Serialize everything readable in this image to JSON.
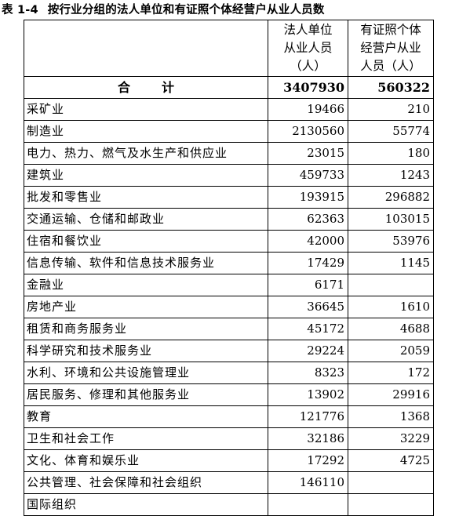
{
  "title": {
    "number": "表 1-4",
    "text": "按行业分组的法人单位和有证照个体经营户从业人员数"
  },
  "columns": {
    "legal": [
      "法人单位",
      "从业人员",
      "（人）"
    ],
    "individual": [
      "有证照个体",
      "经营户从业",
      "人员（人）"
    ]
  },
  "total": {
    "label": "合计",
    "legal": "3407930",
    "individual": "560322"
  },
  "rows": [
    {
      "name": "采矿业",
      "legal": "19466",
      "individual": "210"
    },
    {
      "name": "制造业",
      "legal": "2130560",
      "individual": "55774"
    },
    {
      "name": "电力、热力、燃气及水生产和供应业",
      "legal": "23015",
      "individual": "180"
    },
    {
      "name": "建筑业",
      "legal": "459733",
      "individual": "1243"
    },
    {
      "name": "批发和零售业",
      "legal": "193915",
      "individual": "296882"
    },
    {
      "name": "交通运输、仓储和邮政业",
      "legal": "62363",
      "individual": "103015"
    },
    {
      "name": "住宿和餐饮业",
      "legal": "42000",
      "individual": "53976"
    },
    {
      "name": "信息传输、软件和信息技术服务业",
      "legal": "17429",
      "individual": "1145"
    },
    {
      "name": "金融业",
      "legal": "6171",
      "individual": ""
    },
    {
      "name": "房地产业",
      "legal": "36645",
      "individual": "1610"
    },
    {
      "name": "租赁和商务服务业",
      "legal": "45172",
      "individual": "4688"
    },
    {
      "name": "科学研究和技术服务业",
      "legal": "29224",
      "individual": "2059"
    },
    {
      "name": "水利、环境和公共设施管理业",
      "legal": "8323",
      "individual": "172"
    },
    {
      "name": "居民服务、修理和其他服务业",
      "legal": "13902",
      "individual": "29916"
    },
    {
      "name": "教育",
      "legal": "121776",
      "individual": "1368"
    },
    {
      "name": "卫生和社会工作",
      "legal": "32186",
      "individual": "3229"
    },
    {
      "name": "文化、体育和娱乐业",
      "legal": "17292",
      "individual": "4725"
    },
    {
      "name": "公共管理、社会保障和社会组织",
      "legal": "146110",
      "individual": ""
    },
    {
      "name": "国际组织",
      "legal": "",
      "individual": ""
    }
  ]
}
